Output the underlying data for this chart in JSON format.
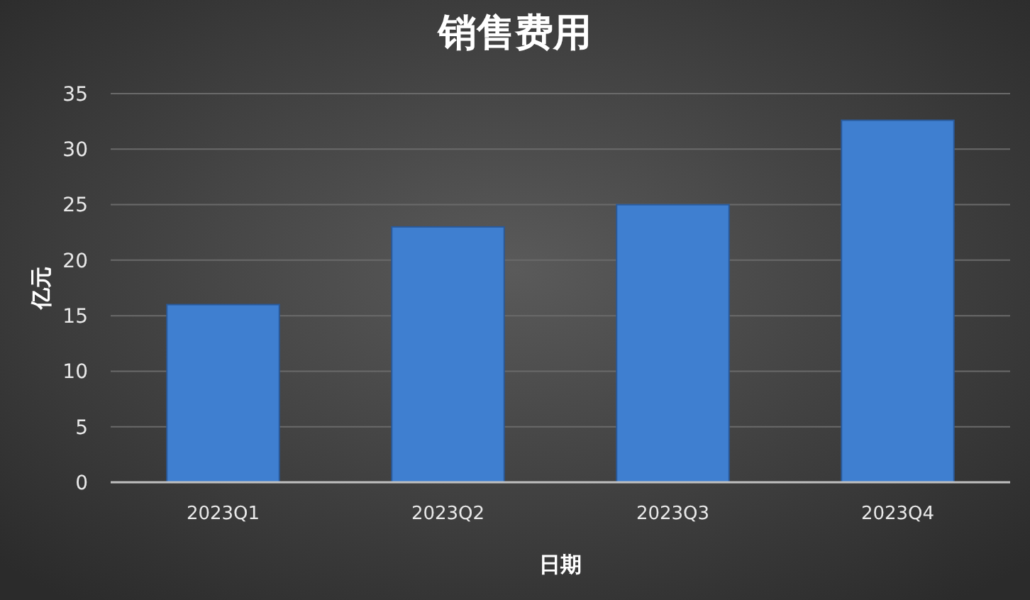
{
  "chart_data": {
    "type": "bar",
    "title": "销售费用",
    "xlabel": "日期",
    "ylabel": "亿元",
    "categories": [
      "2023Q1",
      "2023Q2",
      "2023Q3",
      "2023Q4"
    ],
    "values": [
      16,
      23,
      25,
      32.6
    ],
    "color": "#3f7fd0",
    "ylim": [
      0,
      35
    ],
    "yticks": [
      0,
      5,
      10,
      15,
      20,
      25,
      30,
      35
    ],
    "grid": "y"
  }
}
